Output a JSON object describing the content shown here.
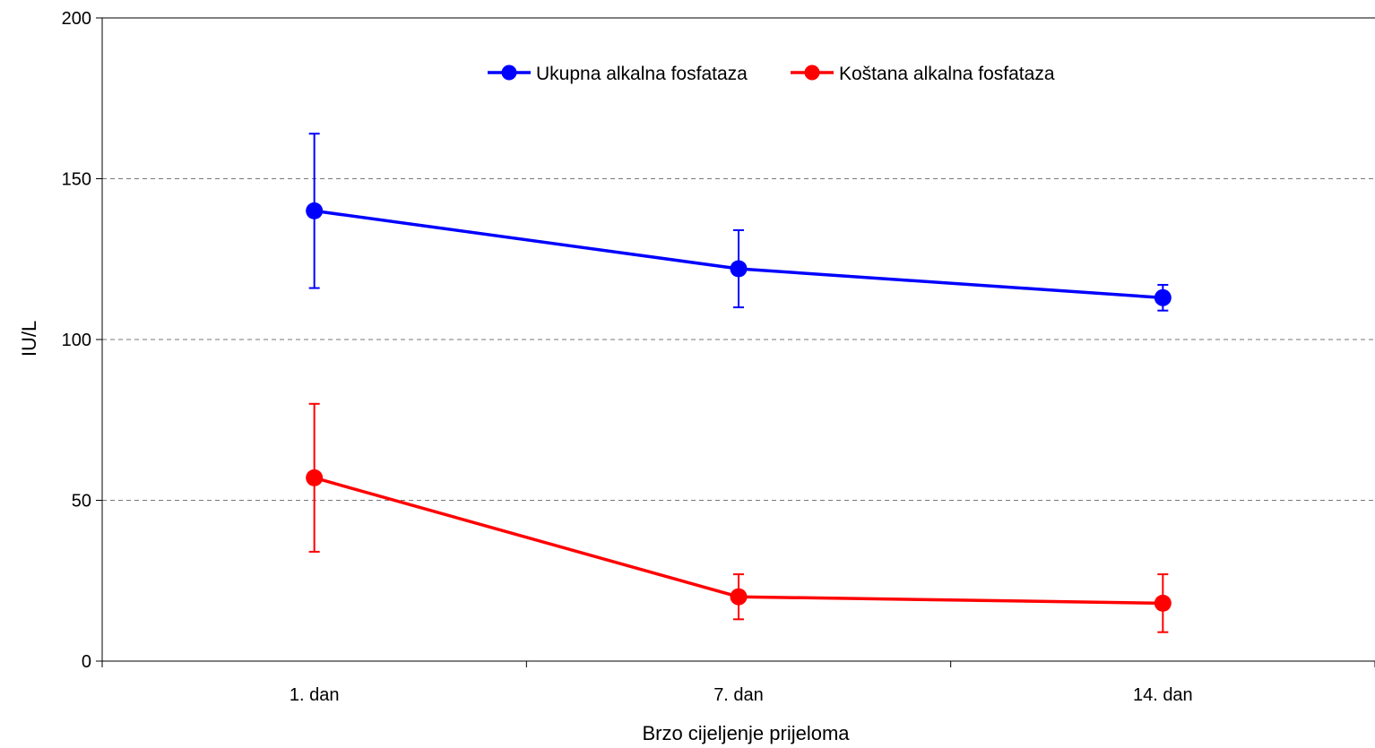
{
  "chart_data": {
    "type": "line",
    "categories": [
      "1. dan",
      "7. dan",
      "14. dan"
    ],
    "xlabel": "Brzo cijeljenje prijeloma",
    "ylabel": "IU/L",
    "ylim": [
      0,
      200
    ],
    "yticks": [
      0,
      50,
      100,
      150,
      200
    ],
    "grid": "horizontal dashed",
    "legend_position": "top-center",
    "series": [
      {
        "name": "Ukupna alkalna fosfataza",
        "color": "#0000ff",
        "values": [
          140,
          122,
          113
        ],
        "error_low": [
          116,
          110,
          109
        ],
        "error_high": [
          164,
          134,
          117
        ]
      },
      {
        "name": "Koštana alkalna fosfataza",
        "color": "#ff0000",
        "values": [
          57,
          20,
          18
        ],
        "error_low": [
          34,
          13,
          9
        ],
        "error_high": [
          80,
          27,
          27
        ]
      }
    ]
  }
}
